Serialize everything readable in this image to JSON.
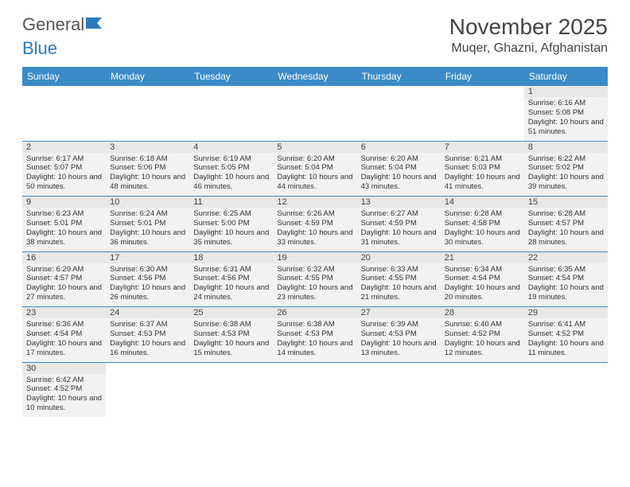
{
  "logo": {
    "part1": "General",
    "part2": "Blue"
  },
  "title": "November 2025",
  "location": "Muqer, Ghazni, Afghanistan",
  "colors": {
    "header_bg": "#3b8bc8",
    "header_text": "#ffffff",
    "cell_bg": "#f2f2f2",
    "border": "#3b8bc8",
    "title_color": "#444444",
    "logo_blue": "#2a7abf"
  },
  "day_headers": [
    "Sunday",
    "Monday",
    "Tuesday",
    "Wednesday",
    "Thursday",
    "Friday",
    "Saturday"
  ],
  "weeks": [
    [
      null,
      null,
      null,
      null,
      null,
      null,
      {
        "n": "1",
        "sr": "6:16 AM",
        "ss": "5:08 PM",
        "dl": "10 hours and 51 minutes."
      }
    ],
    [
      {
        "n": "2",
        "sr": "6:17 AM",
        "ss": "5:07 PM",
        "dl": "10 hours and 50 minutes."
      },
      {
        "n": "3",
        "sr": "6:18 AM",
        "ss": "5:06 PM",
        "dl": "10 hours and 48 minutes."
      },
      {
        "n": "4",
        "sr": "6:19 AM",
        "ss": "5:05 PM",
        "dl": "10 hours and 46 minutes."
      },
      {
        "n": "5",
        "sr": "6:20 AM",
        "ss": "5:04 PM",
        "dl": "10 hours and 44 minutes."
      },
      {
        "n": "6",
        "sr": "6:20 AM",
        "ss": "5:04 PM",
        "dl": "10 hours and 43 minutes."
      },
      {
        "n": "7",
        "sr": "6:21 AM",
        "ss": "5:03 PM",
        "dl": "10 hours and 41 minutes."
      },
      {
        "n": "8",
        "sr": "6:22 AM",
        "ss": "5:02 PM",
        "dl": "10 hours and 39 minutes."
      }
    ],
    [
      {
        "n": "9",
        "sr": "6:23 AM",
        "ss": "5:01 PM",
        "dl": "10 hours and 38 minutes."
      },
      {
        "n": "10",
        "sr": "6:24 AM",
        "ss": "5:01 PM",
        "dl": "10 hours and 36 minutes."
      },
      {
        "n": "11",
        "sr": "6:25 AM",
        "ss": "5:00 PM",
        "dl": "10 hours and 35 minutes."
      },
      {
        "n": "12",
        "sr": "6:26 AM",
        "ss": "4:59 PM",
        "dl": "10 hours and 33 minutes."
      },
      {
        "n": "13",
        "sr": "6:27 AM",
        "ss": "4:59 PM",
        "dl": "10 hours and 31 minutes."
      },
      {
        "n": "14",
        "sr": "6:28 AM",
        "ss": "4:58 PM",
        "dl": "10 hours and 30 minutes."
      },
      {
        "n": "15",
        "sr": "6:28 AM",
        "ss": "4:57 PM",
        "dl": "10 hours and 28 minutes."
      }
    ],
    [
      {
        "n": "16",
        "sr": "6:29 AM",
        "ss": "4:57 PM",
        "dl": "10 hours and 27 minutes."
      },
      {
        "n": "17",
        "sr": "6:30 AM",
        "ss": "4:56 PM",
        "dl": "10 hours and 26 minutes."
      },
      {
        "n": "18",
        "sr": "6:31 AM",
        "ss": "4:56 PM",
        "dl": "10 hours and 24 minutes."
      },
      {
        "n": "19",
        "sr": "6:32 AM",
        "ss": "4:55 PM",
        "dl": "10 hours and 23 minutes."
      },
      {
        "n": "20",
        "sr": "6:33 AM",
        "ss": "4:55 PM",
        "dl": "10 hours and 21 minutes."
      },
      {
        "n": "21",
        "sr": "6:34 AM",
        "ss": "4:54 PM",
        "dl": "10 hours and 20 minutes."
      },
      {
        "n": "22",
        "sr": "6:35 AM",
        "ss": "4:54 PM",
        "dl": "10 hours and 19 minutes."
      }
    ],
    [
      {
        "n": "23",
        "sr": "6:36 AM",
        "ss": "4:54 PM",
        "dl": "10 hours and 17 minutes."
      },
      {
        "n": "24",
        "sr": "6:37 AM",
        "ss": "4:53 PM",
        "dl": "10 hours and 16 minutes."
      },
      {
        "n": "25",
        "sr": "6:38 AM",
        "ss": "4:53 PM",
        "dl": "10 hours and 15 minutes."
      },
      {
        "n": "26",
        "sr": "6:38 AM",
        "ss": "4:53 PM",
        "dl": "10 hours and 14 minutes."
      },
      {
        "n": "27",
        "sr": "6:39 AM",
        "ss": "4:53 PM",
        "dl": "10 hours and 13 minutes."
      },
      {
        "n": "28",
        "sr": "6:40 AM",
        "ss": "4:52 PM",
        "dl": "10 hours and 12 minutes."
      },
      {
        "n": "29",
        "sr": "6:41 AM",
        "ss": "4:52 PM",
        "dl": "10 hours and 11 minutes."
      }
    ],
    [
      {
        "n": "30",
        "sr": "6:42 AM",
        "ss": "4:52 PM",
        "dl": "10 hours and 10 minutes."
      },
      null,
      null,
      null,
      null,
      null,
      null
    ]
  ],
  "labels": {
    "sunrise": "Sunrise:",
    "sunset": "Sunset:",
    "daylight": "Daylight:"
  }
}
